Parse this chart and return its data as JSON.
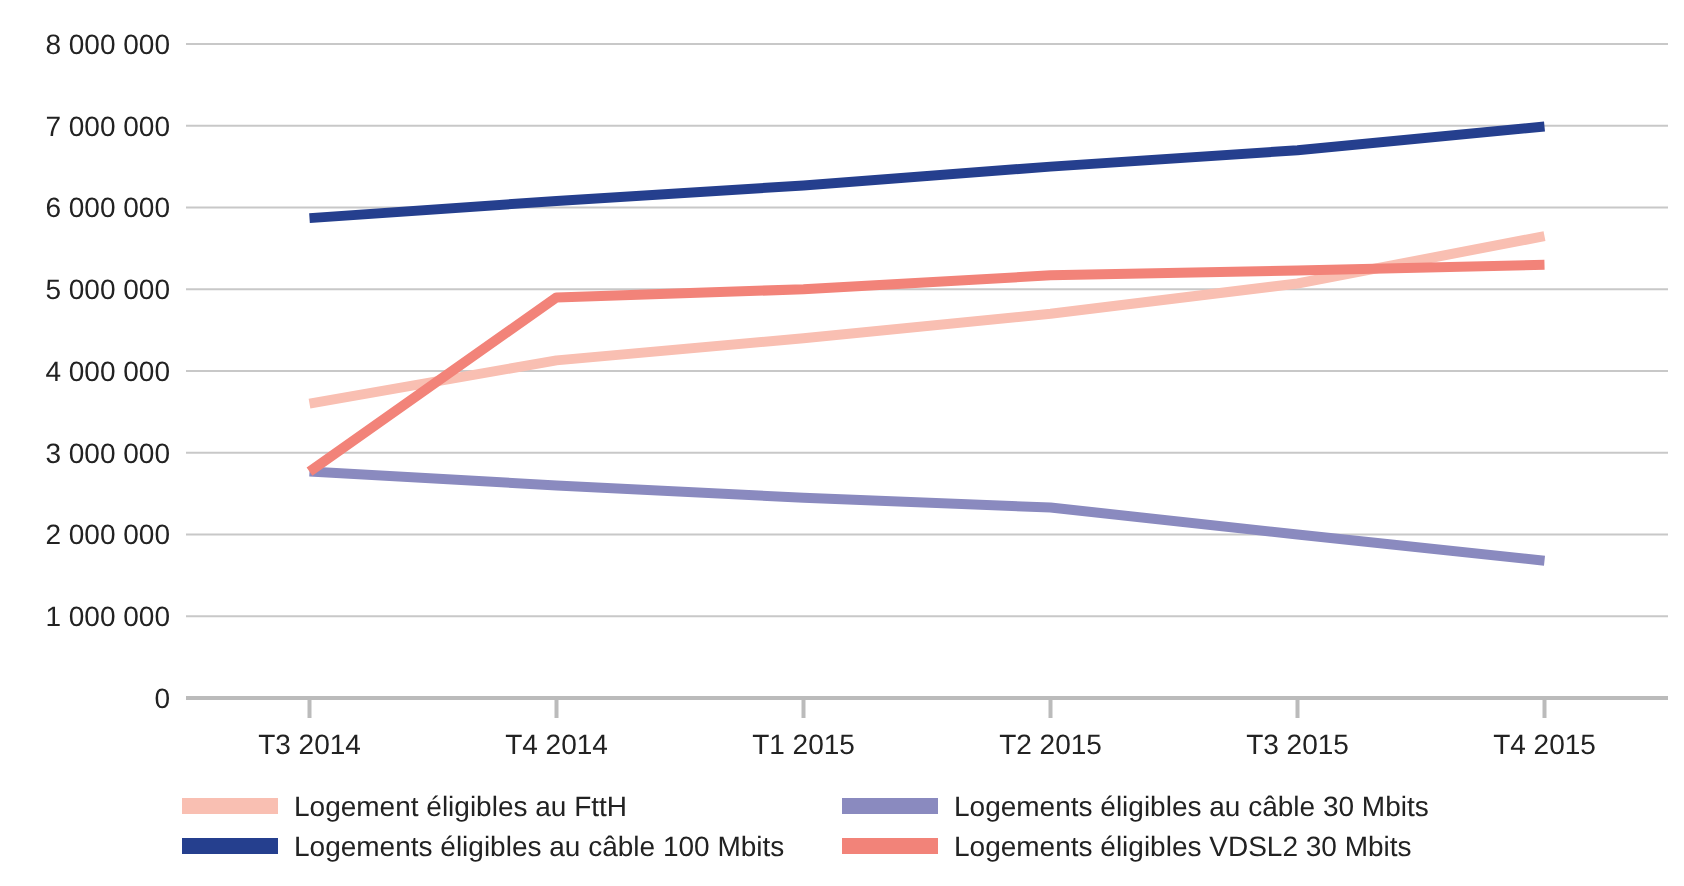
{
  "chart_data": {
    "type": "line",
    "categories": [
      "T3 2014",
      "T4 2014",
      "T1 2015",
      "T2 2015",
      "T3 2015",
      "T4 2015"
    ],
    "series": [
      {
        "name": "Logement éligibles au FttH",
        "color": "#f9bfb2",
        "values": [
          3600000,
          4130000,
          4400000,
          4700000,
          5070000,
          5650000
        ]
      },
      {
        "name": "Logements éligibles au câble 30 Mbits",
        "color": "#8a8abf",
        "values": [
          2770000,
          2600000,
          2450000,
          2330000,
          2000000,
          1680000
        ]
      },
      {
        "name": "Logements éligibles au câble 100 Mbits",
        "color": "#253f8e",
        "values": [
          5870000,
          6080000,
          6270000,
          6500000,
          6700000,
          6990000
        ]
      },
      {
        "name": "Logements éligibles VDSL2 30 Mbits",
        "color": "#f28379",
        "values": [
          2770000,
          4900000,
          5000000,
          5170000,
          5230000,
          5300000
        ]
      }
    ],
    "ylim": [
      0,
      8000000
    ],
    "yticks": [
      0,
      1000000,
      2000000,
      3000000,
      4000000,
      5000000,
      6000000,
      7000000,
      8000000
    ],
    "grid": "y",
    "legend": "bottom",
    "marker": "none",
    "line_style": "solid"
  }
}
